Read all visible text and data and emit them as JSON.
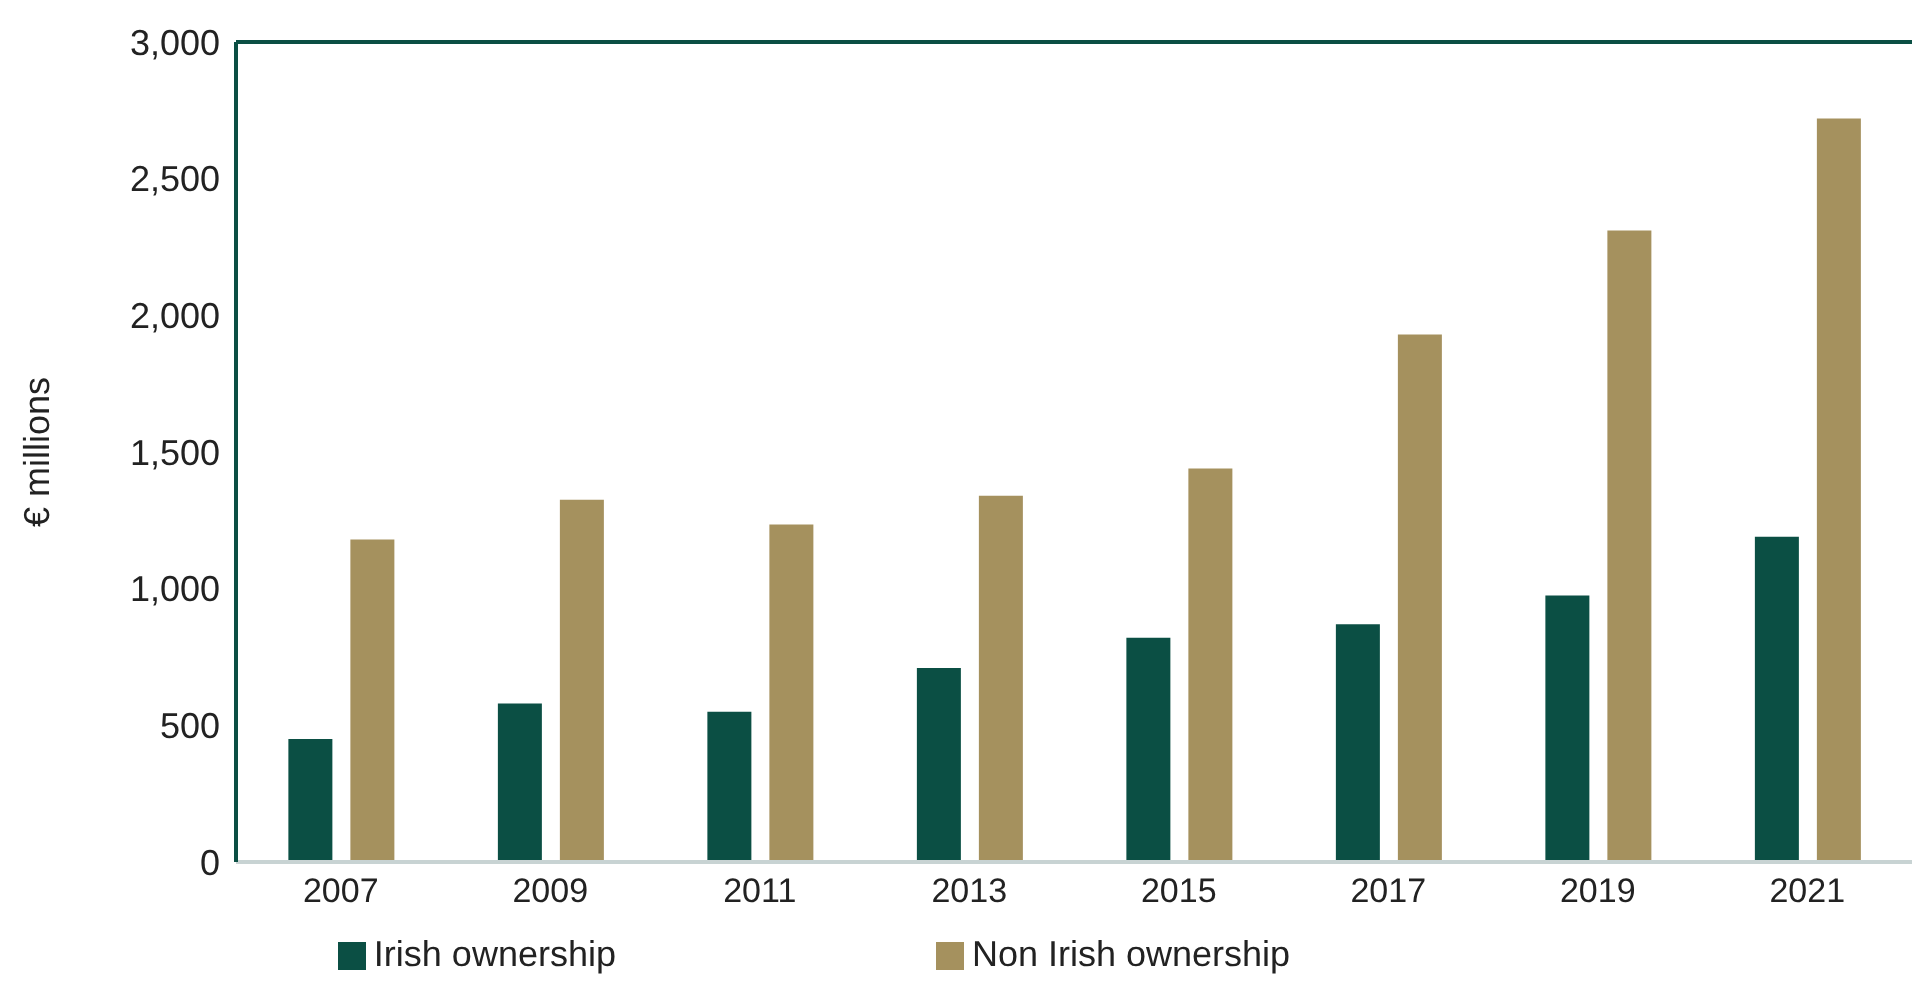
{
  "chart_data": {
    "type": "bar",
    "ylabel": "€ millions",
    "categories": [
      "2007",
      "2009",
      "2011",
      "2013",
      "2015",
      "2017",
      "2019",
      "2021"
    ],
    "series": [
      {
        "name": "Irish ownership",
        "color": "#0b4f44",
        "values": [
          450,
          580,
          550,
          710,
          820,
          870,
          975,
          1190
        ]
      },
      {
        "name": "Non Irish ownership",
        "color": "#a5915e",
        "values": [
          1180,
          1325,
          1235,
          1340,
          1440,
          1930,
          2310,
          2720
        ]
      }
    ],
    "ylim": [
      0,
      3000
    ],
    "yticks": [
      {
        "value": 0,
        "label": "0"
      },
      {
        "value": 500,
        "label": "500"
      },
      {
        "value": 1000,
        "label": "1,000"
      },
      {
        "value": 1500,
        "label": "1,500"
      },
      {
        "value": 2000,
        "label": "2,000"
      },
      {
        "value": 2500,
        "label": "2,500"
      },
      {
        "value": 3000,
        "label": "3,000"
      }
    ],
    "grid": false,
    "legend": "bottom"
  }
}
